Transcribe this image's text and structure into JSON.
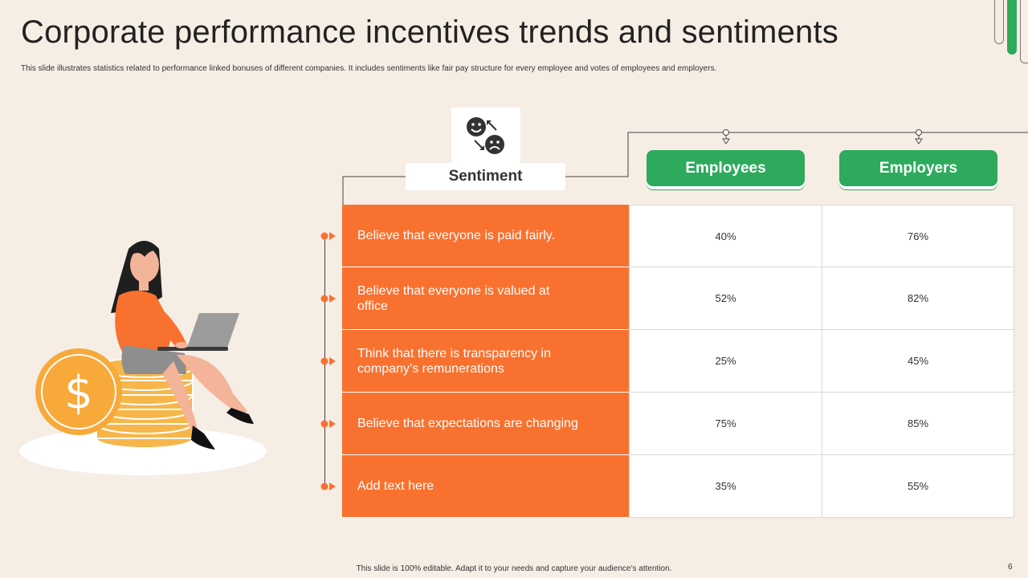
{
  "slide": {
    "title": "Corporate performance incentives trends and sentiments",
    "subtitle": "This slide illustrates statistics related to performance linked bonuses of different companies. It includes sentiments like fair pay structure for every employee and votes of employees and employers.",
    "footer": "This slide is 100% editable. Adapt it to your needs and capture your audience’s attention.",
    "page_number": "6"
  },
  "icons": {
    "sentiment": "happy-sad-faces-icon",
    "illustration": "woman-with-laptop-on-coins-illustration",
    "coin": "dollar-coin-icon"
  },
  "colors": {
    "accent_orange": "#f9712f",
    "accent_green": "#2eaa5c",
    "background": "#f6ede5"
  },
  "table": {
    "label_header": "Sentiment",
    "columns": [
      "Employees",
      "Employers"
    ],
    "rows": [
      {
        "label": "Believe that everyone is paid fairly.",
        "employees": "40%",
        "employers": "76%"
      },
      {
        "label": "Believe that everyone is valued at office",
        "employees": "52%",
        "employers": "82%"
      },
      {
        "label": "Think that there is transparency in company’s remunerations",
        "employees": "25%",
        "employers": "45%"
      },
      {
        "label": "Believe that expectations are changing",
        "employees": "75%",
        "employers": "85%"
      },
      {
        "label": "Add text here",
        "employees": "35%",
        "employers": "55%"
      }
    ]
  }
}
